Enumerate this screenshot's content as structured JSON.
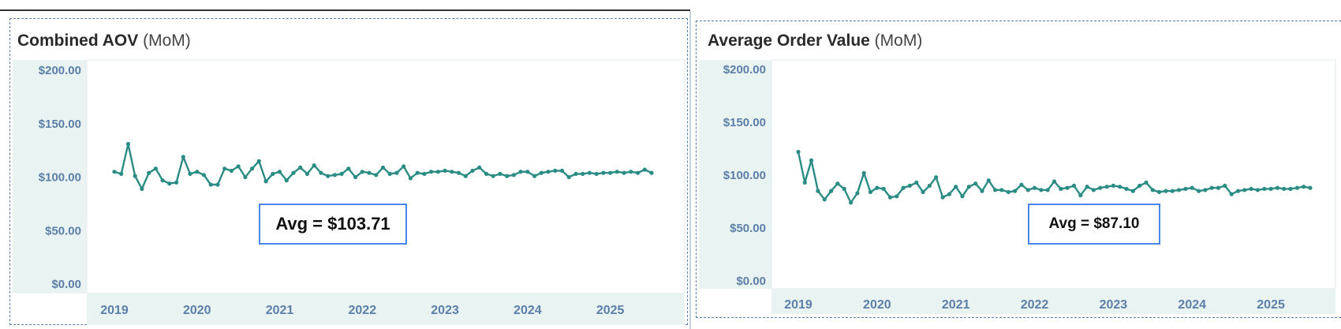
{
  "colors": {
    "line": "#2a8c84",
    "axis_text": "#5b7fa8",
    "shade": "#e9f3f1",
    "avg_border": "#4a86e8"
  },
  "panels": [
    {
      "title_bold": "Combined AOV",
      "title_sub": "(MoM)",
      "avg_label": "Avg = $103.71"
    },
    {
      "title_bold": "Average Order Value",
      "title_sub": "(MoM)",
      "avg_label": "Avg = $87.10"
    }
  ],
  "chart_data": [
    {
      "type": "line",
      "title": "Combined AOV (MoM)",
      "x_start": "2019-01",
      "x_ticks": [
        "2019",
        "2020",
        "2021",
        "2022",
        "2023",
        "2024",
        "2025"
      ],
      "y_ticks": [
        "$0.00",
        "$50.00",
        "$100.00",
        "$150.00",
        "$200.00"
      ],
      "ylim": [
        0,
        200
      ],
      "annotation": "Avg = $103.71",
      "series": [
        {
          "values": [
            105,
            103,
            131,
            101,
            89,
            104,
            108,
            97,
            94,
            95,
            119,
            103,
            105,
            102,
            93,
            93,
            108,
            106,
            110,
            100,
            108,
            115,
            96,
            103,
            105,
            97,
            104,
            109,
            103,
            111,
            104,
            101,
            102,
            103,
            108,
            100,
            105,
            104,
            102,
            109,
            103,
            104,
            110,
            99,
            104,
            103,
            105,
            105,
            106,
            105,
            104,
            101,
            106,
            109,
            103,
            101,
            103,
            101,
            102,
            105,
            105,
            101,
            104,
            105,
            106,
            106,
            100,
            103,
            103,
            104,
            103,
            104,
            104,
            105,
            104,
            105,
            104,
            107,
            104
          ]
        }
      ]
    },
    {
      "type": "line",
      "title": "Average Order Value (MoM)",
      "x_start": "2019-01",
      "x_ticks": [
        "2019",
        "2020",
        "2021",
        "2022",
        "2023",
        "2024",
        "2025"
      ],
      "y_ticks": [
        "$0.00",
        "$50.00",
        "$100.00",
        "$150.00",
        "$200.00"
      ],
      "ylim": [
        0,
        200
      ],
      "annotation": "Avg = $87.10",
      "series": [
        {
          "values": [
            122,
            93,
            114,
            85,
            77,
            85,
            92,
            87,
            74,
            83,
            102,
            84,
            88,
            87,
            79,
            80,
            88,
            90,
            93,
            84,
            90,
            98,
            79,
            82,
            89,
            80,
            89,
            92,
            85,
            95,
            86,
            86,
            84,
            85,
            91,
            86,
            88,
            86,
            86,
            94,
            87,
            88,
            90,
            81,
            89,
            86,
            88,
            89,
            90,
            89,
            87,
            85,
            90,
            93,
            86,
            84,
            85,
            85,
            86,
            87,
            88,
            85,
            86,
            88,
            88,
            90,
            82,
            85,
            86,
            87,
            86,
            87,
            87,
            88,
            87,
            87,
            88,
            89,
            88
          ]
        }
      ]
    }
  ]
}
